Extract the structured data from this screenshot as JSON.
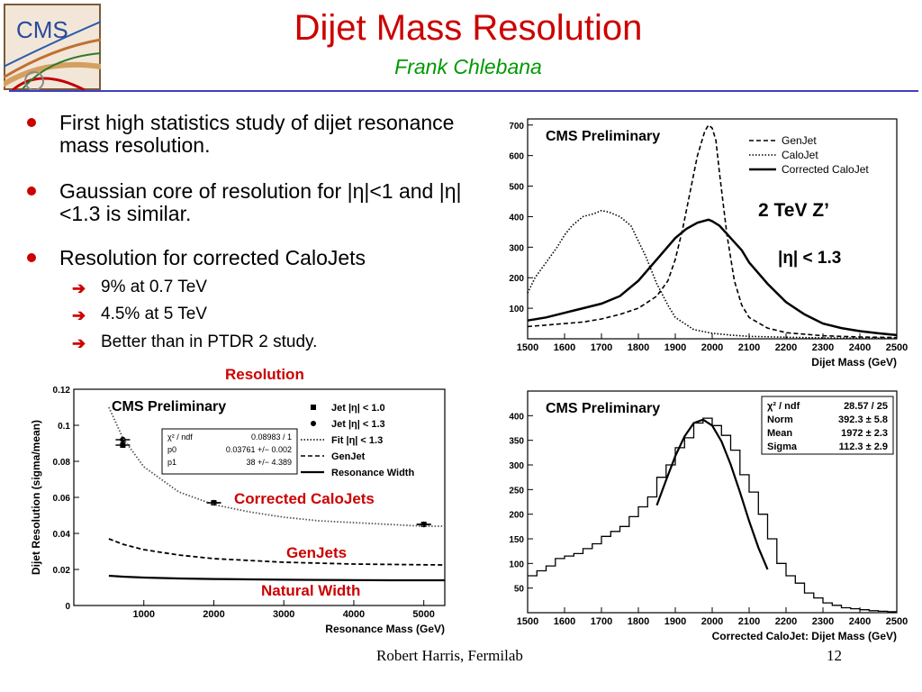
{
  "slide": {
    "title": "Dijet Mass Resolution",
    "author": "Frank Chlebana",
    "logo_text": "CMS",
    "bullets": [
      {
        "text": "First high statistics study of dijet resonance mass resolution."
      },
      {
        "text": "Gaussian core of resolution for |η|<1 and |η|<1.3 is similar."
      },
      {
        "text": "Resolution for corrected CaloJets"
      }
    ],
    "sub_bullets": [
      "9% at 0.7 TeV",
      "4.5% at 5 TeV",
      "Better than in PTDR 2 study."
    ],
    "labels": {
      "resolution": "Resolution",
      "corrected_calojets": "Corrected CaloJets",
      "genjets": "GenJets",
      "natural_width": "Natural Width",
      "zprime": "2 TeV Z’",
      "eta_cut": "|η| < 1.3"
    },
    "footer": {
      "presenter": "Robert Harris, Fermilab",
      "page": "12"
    },
    "colors": {
      "title": "#cc0000",
      "author": "#009900",
      "rule": "#4040c0",
      "bullet": "#cc0000"
    }
  },
  "chart_data": [
    {
      "type": "line",
      "name": "dijet-mass-distributions",
      "title": "CMS Preliminary",
      "xlabel": "Dijet Mass (GeV)",
      "ylabel": "",
      "xlim": [
        1500,
        2500
      ],
      "ylim": [
        0,
        720
      ],
      "xticks": [
        1500,
        1600,
        1700,
        1800,
        1900,
        2000,
        2100,
        2200,
        2300,
        2400,
        2500
      ],
      "yticks": [
        100,
        200,
        300,
        400,
        500,
        600,
        700
      ],
      "legend": [
        "GenJet",
        "CaloJet",
        "Corrected CaloJet"
      ],
      "legend_position": "top-right",
      "series": [
        {
          "name": "GenJet",
          "style": "dashed",
          "x": [
            1500,
            1550,
            1600,
            1650,
            1700,
            1750,
            1800,
            1850,
            1880,
            1900,
            1920,
            1940,
            1960,
            1980,
            1990,
            2000,
            2010,
            2020,
            2040,
            2060,
            2080,
            2100,
            2150,
            2200,
            2300,
            2400,
            2500
          ],
          "y": [
            40,
            45,
            50,
            55,
            65,
            80,
            100,
            140,
            190,
            260,
            360,
            480,
            600,
            680,
            700,
            690,
            650,
            540,
            340,
            190,
            110,
            70,
            35,
            20,
            10,
            6,
            4
          ]
        },
        {
          "name": "CaloJet",
          "style": "dotted",
          "x": [
            1500,
            1520,
            1550,
            1580,
            1600,
            1620,
            1650,
            1680,
            1700,
            1720,
            1750,
            1780,
            1800,
            1820,
            1850,
            1880,
            1900,
            1950,
            2000,
            2050,
            2100,
            2200,
            2300,
            2400,
            2500
          ],
          "y": [
            150,
            200,
            250,
            300,
            340,
            370,
            400,
            410,
            420,
            415,
            400,
            370,
            320,
            270,
            180,
            110,
            70,
            30,
            18,
            12,
            8,
            5,
            3,
            2,
            2
          ]
        },
        {
          "name": "Corrected CaloJet",
          "style": "solid",
          "x": [
            1500,
            1550,
            1600,
            1650,
            1700,
            1750,
            1800,
            1850,
            1900,
            1930,
            1960,
            1990,
            2000,
            2020,
            2050,
            2080,
            2100,
            2150,
            2200,
            2250,
            2300,
            2350,
            2400,
            2450,
            2500
          ],
          "y": [
            60,
            70,
            85,
            100,
            115,
            140,
            190,
            260,
            330,
            360,
            380,
            390,
            385,
            370,
            330,
            290,
            250,
            180,
            120,
            80,
            50,
            35,
            25,
            18,
            12
          ]
        }
      ],
      "annotations": [
        "2 TeV Z’",
        "|η| < 1.3"
      ]
    },
    {
      "type": "scatter",
      "name": "dijet-resolution-vs-mass",
      "title": "CMS Preliminary",
      "xlabel": "Resonance Mass (GeV)",
      "ylabel": "Dijet Resolution (sigma/mean)",
      "xlim": [
        0,
        5300
      ],
      "ylim": [
        0,
        0.12
      ],
      "xticks": [
        1000,
        2000,
        3000,
        4000,
        5000
      ],
      "yticks": [
        0,
        0.02,
        0.04,
        0.06,
        0.08,
        0.1,
        0.12
      ],
      "legend": [
        "Jet |η| < 1.0",
        "Jet |η| < 1.3",
        "Fit |η| < 1.3",
        "GenJet",
        "Resonance Width"
      ],
      "legend_position": "top-right",
      "fit_box": {
        "rows": [
          [
            "χ² / ndf",
            "0.08983 / 1"
          ],
          [
            "p0",
            "0.03761 +/− 0.002"
          ],
          [
            "p1",
            "38 +/− 4.389"
          ]
        ]
      },
      "series": [
        {
          "name": "Jet |η| < 1.0",
          "marker": "square",
          "x": [
            700,
            2000,
            5000
          ],
          "y": [
            0.089,
            0.057,
            0.045
          ]
        },
        {
          "name": "Jet |η| < 1.3",
          "marker": "circle",
          "x": [
            700,
            2000,
            5000
          ],
          "y": [
            0.092,
            0.057,
            0.045
          ]
        },
        {
          "name": "Fit |η| < 1.3",
          "style": "dotted",
          "x": [
            500,
            700,
            1000,
            1500,
            2000,
            2500,
            3000,
            3500,
            4000,
            4500,
            5000,
            5300
          ],
          "y": [
            0.11,
            0.093,
            0.077,
            0.063,
            0.056,
            0.052,
            0.049,
            0.047,
            0.046,
            0.045,
            0.044,
            0.044
          ]
        },
        {
          "name": "GenJet",
          "style": "dashed",
          "x": [
            500,
            700,
            1000,
            1500,
            2000,
            2500,
            3000,
            3500,
            4000,
            4500,
            5000,
            5300
          ],
          "y": [
            0.037,
            0.034,
            0.031,
            0.028,
            0.026,
            0.025,
            0.024,
            0.0235,
            0.023,
            0.0228,
            0.0226,
            0.0225
          ]
        },
        {
          "name": "Resonance Width",
          "style": "solid",
          "x": [
            500,
            700,
            1000,
            1500,
            2000,
            2500,
            3000,
            3500,
            4000,
            4500,
            5000,
            5300
          ],
          "y": [
            0.0165,
            0.016,
            0.0155,
            0.015,
            0.0147,
            0.0145,
            0.0143,
            0.0142,
            0.0141,
            0.014,
            0.014,
            0.014
          ]
        }
      ],
      "annotations": [
        "Corrected CaloJets",
        "GenJets",
        "Natural Width"
      ]
    },
    {
      "type": "line",
      "name": "corrected-calojet-dijet-mass-fit",
      "title": "CMS Preliminary",
      "xlabel": "Corrected CaloJet: Dijet Mass (GeV)",
      "ylabel": "",
      "xlim": [
        1500,
        2500
      ],
      "ylim": [
        0,
        450
      ],
      "xticks": [
        1500,
        1600,
        1700,
        1800,
        1900,
        2000,
        2100,
        2200,
        2300,
        2400,
        2500
      ],
      "yticks": [
        50,
        100,
        150,
        200,
        250,
        300,
        350,
        400
      ],
      "stats_box": {
        "rows": [
          [
            "χ² / ndf",
            "28.57 / 25"
          ],
          [
            "Norm",
            "392.3 ± 5.8"
          ],
          [
            "Mean",
            "1972 ± 2.3"
          ],
          [
            "Sigma",
            "112.3 ± 2.9"
          ]
        ]
      },
      "series": [
        {
          "name": "histogram",
          "style": "step",
          "x": [
            1500,
            1525,
            1550,
            1575,
            1600,
            1625,
            1650,
            1675,
            1700,
            1725,
            1750,
            1775,
            1800,
            1825,
            1850,
            1875,
            1900,
            1925,
            1950,
            1975,
            2000,
            2025,
            2050,
            2075,
            2100,
            2125,
            2150,
            2175,
            2200,
            2225,
            2250,
            2275,
            2300,
            2325,
            2350,
            2375,
            2400,
            2425,
            2450,
            2475
          ],
          "y": [
            75,
            85,
            95,
            110,
            115,
            120,
            130,
            140,
            155,
            165,
            175,
            195,
            215,
            235,
            275,
            300,
            335,
            355,
            385,
            395,
            380,
            360,
            330,
            280,
            245,
            200,
            150,
            100,
            75,
            60,
            40,
            30,
            20,
            15,
            10,
            8,
            6,
            4,
            3,
            2
          ]
        },
        {
          "name": "gaussian-fit",
          "style": "solid",
          "x": [
            1850,
            1875,
            1900,
            1925,
            1950,
            1975,
            2000,
            2025,
            2050,
            2075,
            2100,
            2125,
            2150
          ],
          "y": [
            218,
            269,
            318,
            358,
            385,
            392,
            380,
            348,
            301,
            245,
            186,
            132,
            88
          ]
        }
      ]
    }
  ]
}
